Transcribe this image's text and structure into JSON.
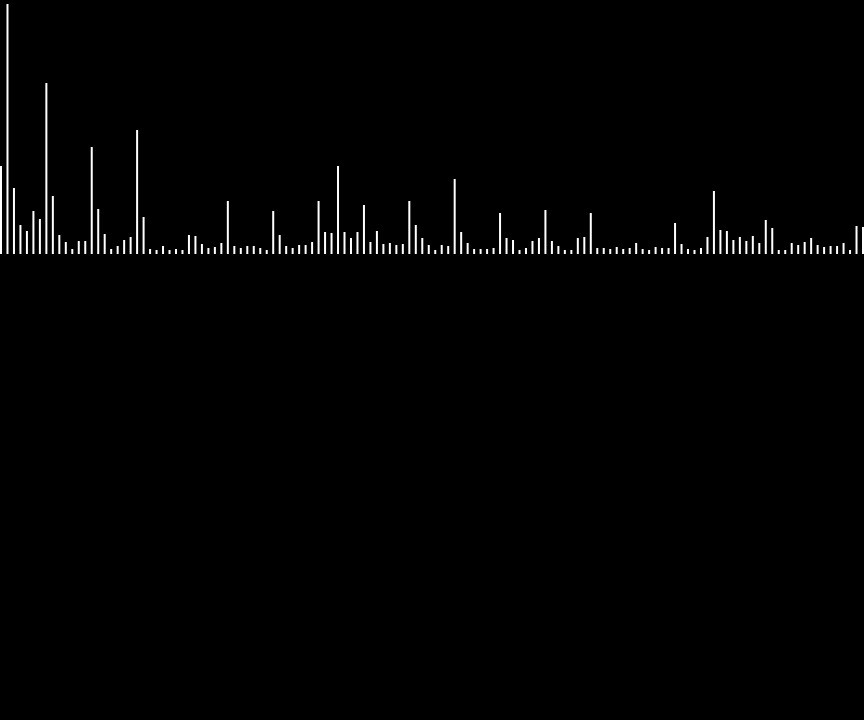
{
  "colors": {
    "background": "#000000",
    "bar": "#ffffff"
  },
  "chart_data": {
    "type": "bar",
    "title": "",
    "xlabel": "",
    "ylabel": "",
    "grid": false,
    "legend": "none",
    "ylim": [
      0,
      250
    ],
    "values": [
      88,
      250,
      66,
      29,
      23,
      43,
      35,
      171,
      58,
      19,
      12,
      5,
      13,
      13,
      107,
      45,
      20,
      5,
      8,
      14,
      17,
      124,
      37,
      5,
      4,
      8,
      4,
      5,
      4,
      19,
      18,
      10,
      6,
      7,
      11,
      53,
      8,
      6,
      8,
      8,
      6,
      4,
      43,
      19,
      8,
      6,
      9,
      9,
      12,
      53,
      22,
      21,
      88,
      22,
      16,
      22,
      49,
      12,
      23,
      10,
      11,
      9,
      10,
      53,
      29,
      16,
      9,
      4,
      9,
      8,
      75,
      22,
      11,
      5,
      5,
      5,
      6,
      41,
      16,
      14,
      4,
      6,
      13,
      16,
      44,
      13,
      8,
      4,
      4,
      16,
      17,
      41,
      6,
      6,
      5,
      7,
      5,
      6,
      11,
      5,
      4,
      7,
      6,
      6,
      31,
      10,
      5,
      4,
      6,
      17,
      63,
      24,
      23,
      14,
      17,
      13,
      18,
      11,
      34,
      26,
      4,
      4,
      11,
      9,
      12,
      16,
      9,
      7,
      8,
      8,
      11,
      4,
      28,
      27
    ]
  }
}
